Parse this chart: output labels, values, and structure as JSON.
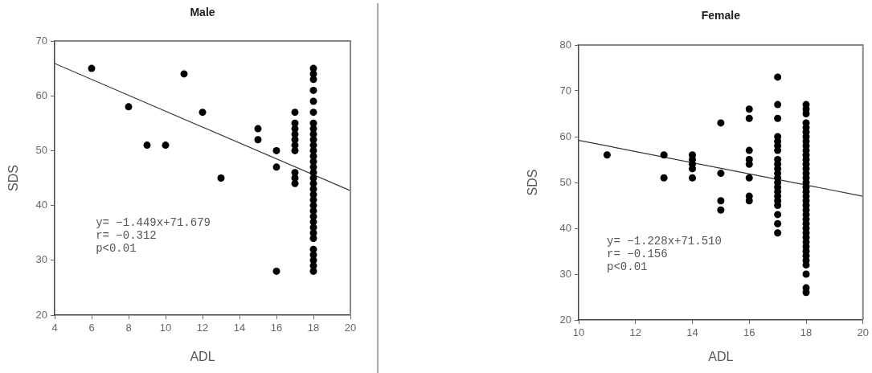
{
  "chart_data": [
    {
      "type": "scatter",
      "title": "Male",
      "xlabel": "ADL",
      "ylabel": "SDS",
      "xlim": [
        4,
        20
      ],
      "xticks": [
        4,
        6,
        8,
        10,
        12,
        14,
        16,
        18,
        20
      ],
      "ylim": [
        20,
        70
      ],
      "yticks": [
        20,
        30,
        40,
        50,
        60,
        70
      ],
      "marker": "circle",
      "series": [
        {
          "color": "#000000",
          "x": [
            6,
            8,
            9,
            10,
            11,
            12,
            13,
            15,
            15,
            16,
            16,
            16,
            17,
            17,
            17,
            17,
            17,
            17,
            17,
            17,
            17,
            17,
            18,
            18,
            18,
            18,
            18,
            18,
            18,
            18,
            18,
            18,
            18,
            18,
            18,
            18,
            18,
            18,
            18,
            18,
            18,
            18,
            18,
            18,
            18,
            18,
            18,
            18,
            18,
            18,
            18,
            18,
            18,
            18,
            18
          ],
          "values": [
            65,
            58,
            51,
            51,
            64,
            57,
            45,
            54,
            52,
            50,
            47,
            28,
            57,
            55,
            54,
            53,
            52,
            51,
            50,
            46,
            45,
            44,
            65,
            64,
            63,
            61,
            59,
            57,
            55,
            54,
            53,
            52,
            51,
            50,
            49,
            48,
            47,
            46,
            45,
            44,
            43,
            42,
            41,
            40,
            39,
            38,
            37,
            36,
            35,
            34,
            32,
            31,
            30,
            29,
            28
          ]
        },
        {
          "type": "line",
          "color": "#333333",
          "marker": "none",
          "x": [
            4,
            20
          ],
          "values": [
            65.9,
            42.7
          ]
        }
      ],
      "annotations": [
        "y= −1.449x+71.679",
        "r= −0.312",
        "p<0.01"
      ]
    },
    {
      "type": "scatter",
      "title": "Female",
      "xlabel": "ADL",
      "ylabel": "SDS",
      "xlim": [
        10,
        20
      ],
      "xticks": [
        10,
        12,
        14,
        16,
        18,
        20
      ],
      "ylim": [
        20,
        80
      ],
      "yticks": [
        20,
        30,
        40,
        50,
        60,
        70,
        80
      ],
      "marker": "circle",
      "series": [
        {
          "color": "#000000",
          "x": [
            11,
            13,
            13,
            14,
            14,
            14,
            14,
            14,
            15,
            15,
            15,
            15,
            16,
            16,
            16,
            16,
            16,
            16,
            16,
            16,
            17,
            17,
            17,
            17,
            17,
            17,
            17,
            17,
            17,
            17,
            17,
            17,
            17,
            17,
            17,
            17,
            17,
            17,
            17,
            17,
            17,
            18,
            18,
            18,
            18,
            18,
            18,
            18,
            18,
            18,
            18,
            18,
            18,
            18,
            18,
            18,
            18,
            18,
            18,
            18,
            18,
            18,
            18,
            18,
            18,
            18,
            18,
            18,
            18,
            18,
            18,
            18,
            18,
            18,
            18,
            18,
            18,
            18,
            18
          ],
          "values": [
            56,
            56,
            51,
            56,
            55,
            54,
            53,
            51,
            63,
            52,
            46,
            44,
            66,
            64,
            57,
            55,
            54,
            51,
            47,
            46,
            73,
            67,
            64,
            60,
            59,
            58,
            57,
            55,
            54,
            53,
            52,
            51,
            50,
            49,
            48,
            47,
            46,
            45,
            43,
            41,
            39,
            67,
            66,
            65,
            63,
            62,
            61,
            60,
            59,
            58,
            57,
            56,
            55,
            54,
            53,
            52,
            51,
            50,
            49,
            48,
            47,
            46,
            45,
            44,
            43,
            42,
            41,
            40,
            39,
            38,
            37,
            36,
            35,
            34,
            33,
            32,
            30,
            27,
            26
          ]
        },
        {
          "type": "line",
          "color": "#333333",
          "marker": "none",
          "x": [
            10,
            20
          ],
          "values": [
            59.2,
            47.0
          ]
        }
      ],
      "annotations": [
        "y= −1.228x+71.510",
        "r= −0.156",
        "p<0.01"
      ]
    }
  ]
}
